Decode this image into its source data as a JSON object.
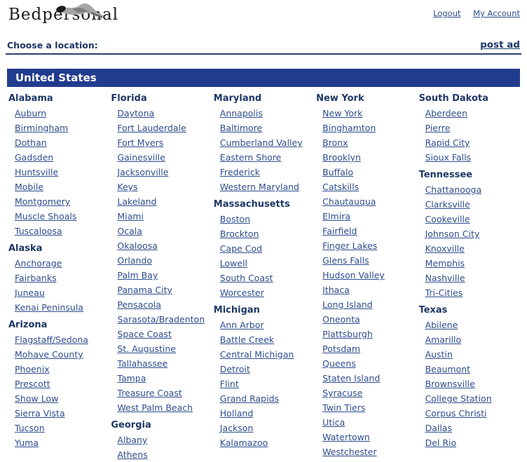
{
  "header": {
    "logo_text": "Bedpersonal",
    "logout_label": "Logout",
    "my_account_label": "My Account"
  },
  "toolbar": {
    "choose_label": "Choose a location:",
    "post_ad_label": "post ad"
  },
  "banner": {
    "title": "United States"
  },
  "colors": {
    "banner_bg": "#213c8e",
    "heading": "#1e3866",
    "link": "#2e4d8e",
    "divider": "#2b3f6e",
    "logo_ink": "#1a1a1a"
  },
  "columns": [
    [
      {
        "state": "Alabama",
        "cities": [
          "Auburn",
          "Birmingham",
          "Dothan",
          "Gadsden",
          "Huntsville",
          "Mobile",
          "Montgomery",
          "Muscle Shoals",
          "Tuscaloosa"
        ]
      },
      {
        "state": "Alaska",
        "cities": [
          "Anchorage",
          "Fairbanks",
          "Juneau",
          "Kenai Peninsula"
        ]
      },
      {
        "state": "Arizona",
        "cities": [
          "Flagstaff/Sedona",
          "Mohave County",
          "Phoenix",
          "Prescott",
          "Show Low",
          "Sierra Vista",
          "Tucson",
          "Yuma"
        ]
      }
    ],
    [
      {
        "state": "Florida",
        "cities": [
          "Daytona",
          "Fort Lauderdale",
          "Fort Myers",
          "Gainesville",
          "Jacksonville",
          "Keys",
          "Lakeland",
          "Miami",
          "Ocala",
          "Okaloosa",
          "Orlando",
          "Palm Bay",
          "Panama City",
          "Pensacola",
          "Sarasota/Bradenton",
          "Space Coast",
          "St. Augustine",
          "Tallahassee",
          "Tampa",
          "Treasure Coast",
          "West Palm Beach"
        ]
      },
      {
        "state": "Georgia",
        "cities": [
          "Albany",
          "Athens"
        ]
      }
    ],
    [
      {
        "state": "Maryland",
        "cities": [
          "Annapolis",
          "Baltimore",
          "Cumberland Valley",
          "Eastern Shore",
          "Frederick",
          "Western Maryland"
        ]
      },
      {
        "state": "Massachusetts",
        "cities": [
          "Boston",
          "Brockton",
          "Cape Cod",
          "Lowell",
          "South Coast",
          "Worcester"
        ]
      },
      {
        "state": "Michigan",
        "cities": [
          "Ann Arbor",
          "Battle Creek",
          "Central Michigan",
          "Detroit",
          "Flint",
          "Grand Rapids",
          "Holland",
          "Jackson",
          "Kalamazoo"
        ]
      }
    ],
    [
      {
        "state": "New York",
        "cities": [
          "New York",
          "Binghamton",
          "Bronx",
          "Brooklyn",
          "Buffalo",
          "Catskills",
          "Chautauqua",
          "Elmira",
          "Fairfield",
          "Finger Lakes",
          "Glens Falls",
          "Hudson Valley",
          "Ithaca",
          "Long Island",
          "Oneonta",
          "Plattsburgh",
          "Potsdam",
          "Queens",
          "Staten Island",
          "Syracuse",
          "Twin Tiers",
          "Utica",
          "Watertown",
          "Westchester"
        ]
      }
    ],
    [
      {
        "state": "South Dakota",
        "cities": [
          "Aberdeen",
          "Pierre",
          "Rapid City",
          "Sioux Falls"
        ]
      },
      {
        "state": "Tennessee",
        "cities": [
          "Chattanooga",
          "Clarksville",
          "Cookeville",
          "Johnson City",
          "Knoxville",
          "Memphis",
          "Nashville",
          "Tri-Cities"
        ]
      },
      {
        "state": "Texas",
        "cities": [
          "Abilene",
          "Amarillo",
          "Austin",
          "Beaumont",
          "Brownsville",
          "College Station",
          "Corpus Christi",
          "Dallas",
          "Del Rio"
        ]
      }
    ]
  ]
}
